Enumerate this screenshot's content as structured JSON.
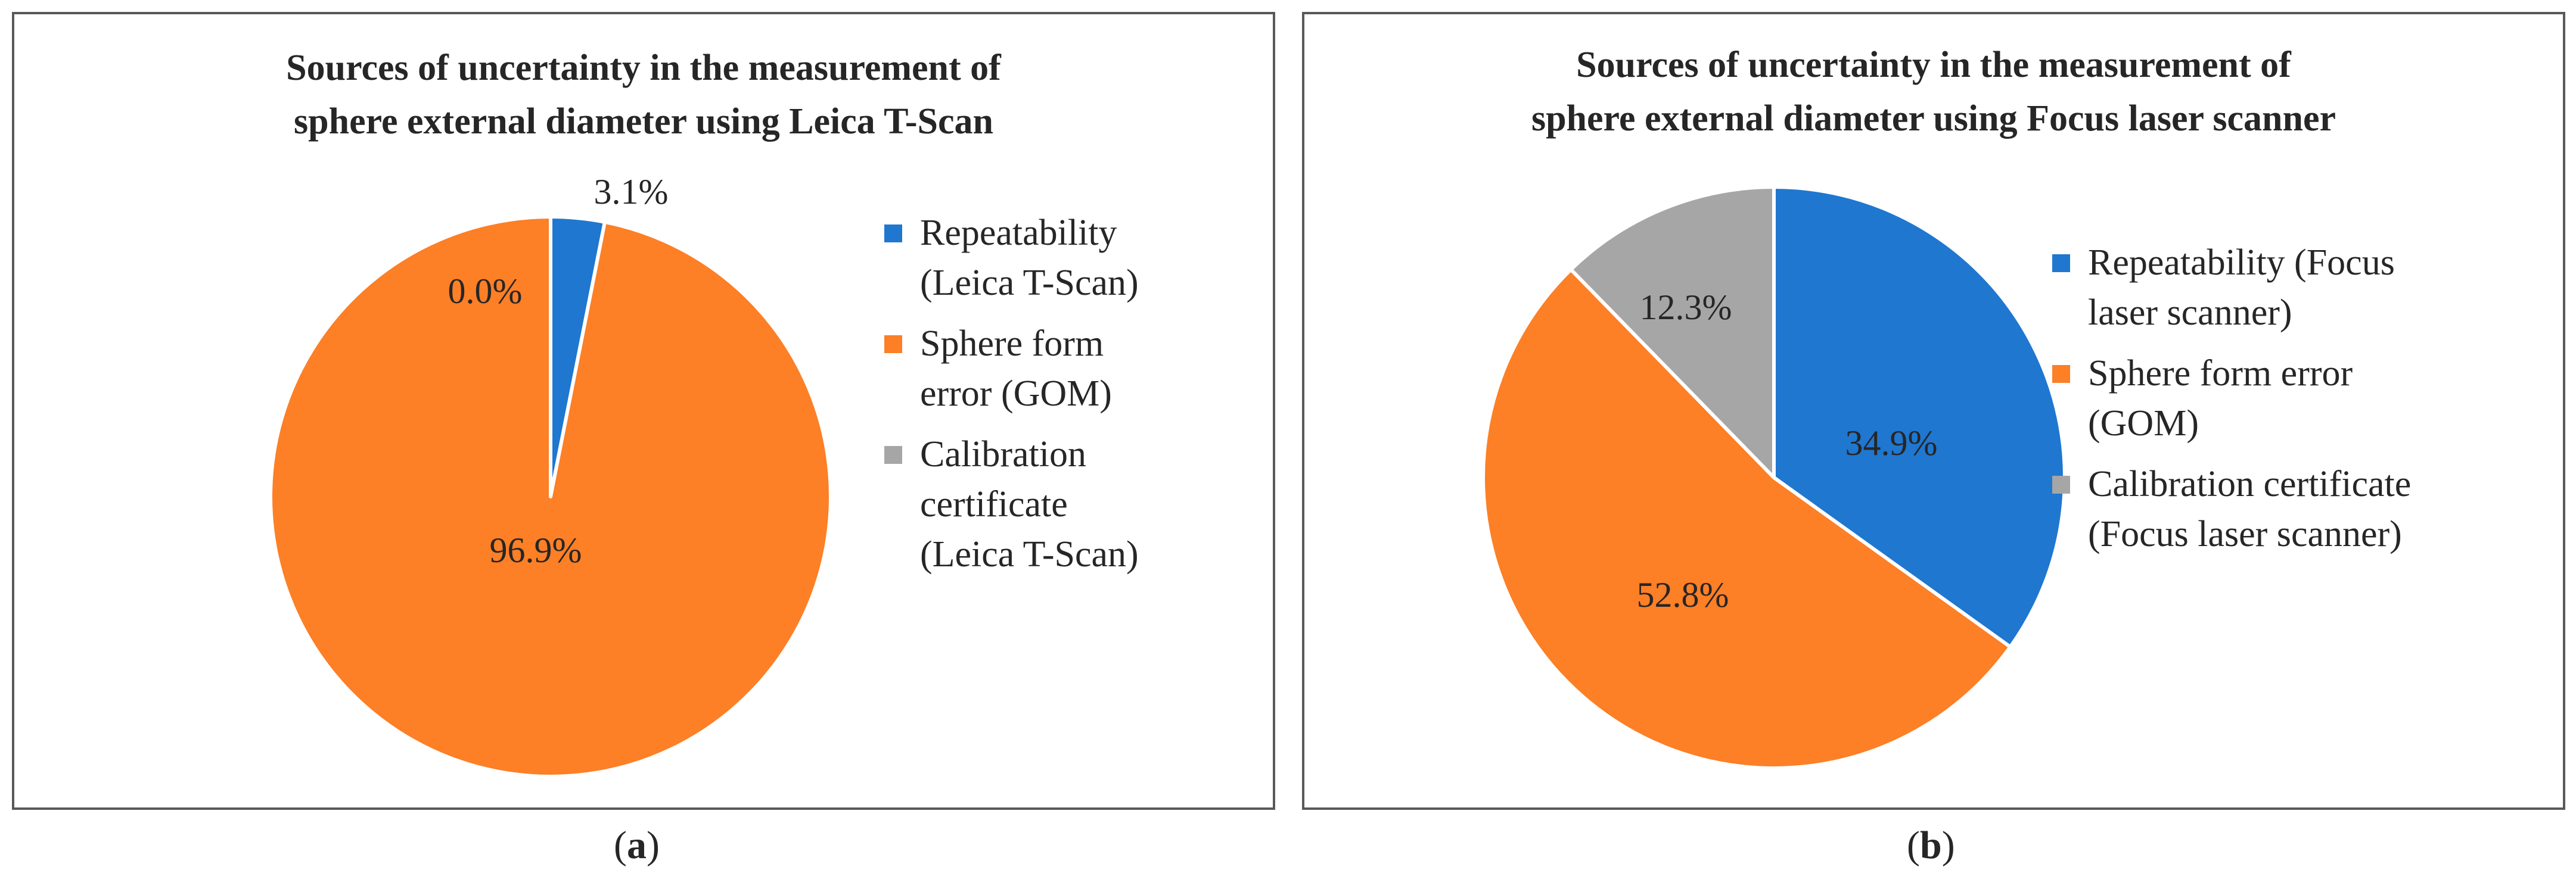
{
  "chart_data": [
    {
      "type": "pie",
      "title": [
        "Sources of uncertainty in the measurement of",
        "sphere external diameter using Leica T-Scan"
      ],
      "labels": [
        "Repeatability (Leica T-Scan)",
        "Sphere form error (GOM)",
        "Calibration certificate (Leica T-Scan)"
      ],
      "values": [
        3.1,
        96.9,
        0.0
      ],
      "value_labels": [
        "3.1%",
        "96.9%",
        "0.0%"
      ],
      "colors": [
        "#1f77d0",
        "#fd7f26",
        "#a6a6a6"
      ],
      "legend": {
        "position": "right",
        "entries": [
          [
            "Repeatability",
            "(Leica T-Scan)"
          ],
          [
            "Sphere form",
            "error (GOM)"
          ],
          [
            "Calibration",
            "certificate",
            "(Leica T-Scan)"
          ]
        ]
      },
      "caption": "a"
    },
    {
      "type": "pie",
      "title": [
        "Sources of uncertainty in the measurement of",
        "sphere external diameter using Focus laser scanner"
      ],
      "labels": [
        "Repeatability (Focus laser scanner)",
        "Sphere form error (GOM)",
        "Calibration certificate (Focus laser scanner)"
      ],
      "values": [
        34.9,
        52.8,
        12.3
      ],
      "value_labels": [
        "34.9%",
        "52.8%",
        "12.3%"
      ],
      "colors": [
        "#1f77d0",
        "#fd7f26",
        "#a6a6a6"
      ],
      "legend": {
        "position": "right",
        "entries": [
          [
            "Repeatability (Focus",
            "laser scanner)"
          ],
          [
            "Sphere form error",
            "(GOM)"
          ],
          [
            "Calibration certificate",
            "(Focus laser scanner)"
          ]
        ]
      },
      "caption": "b"
    }
  ],
  "captions": {
    "open": "(",
    "close": ")"
  }
}
